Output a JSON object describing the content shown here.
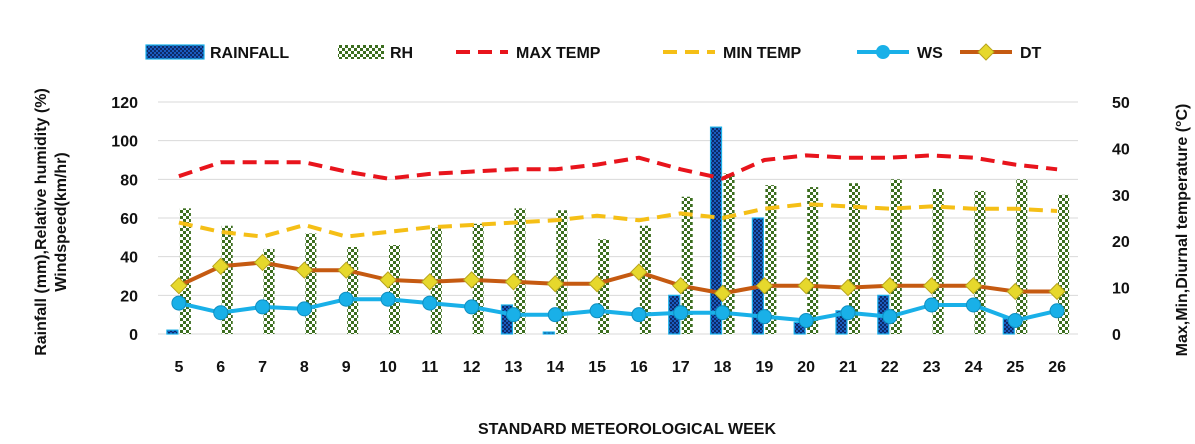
{
  "chart_data": {
    "type": "bar",
    "title": "",
    "xlabel": "STANDARD METEOROLOGICAL WEEK",
    "ylabel_left": [
      "Rainfall (mm),Relative humidity (%)",
      "Windspeed(km/hr)"
    ],
    "ylabel_right": "Max,Min,Diurnal temperature (°C)",
    "ylim_left": [
      0,
      120
    ],
    "ylim_right": [
      0,
      50
    ],
    "yticks_left": [
      0,
      20,
      40,
      60,
      80,
      100,
      120
    ],
    "yticks_right": [
      0,
      10,
      20,
      30,
      40,
      50
    ],
    "grid": true,
    "legend_position": "top",
    "categories": [
      "5",
      "6",
      "7",
      "8",
      "9",
      "10",
      "11",
      "12",
      "13",
      "14",
      "15",
      "16",
      "17",
      "18",
      "19",
      "20",
      "21",
      "22",
      "23",
      "24",
      "25",
      "26"
    ],
    "series": [
      {
        "name": "RAINFALL",
        "kind": "bar",
        "axis": "left",
        "color": "#1a5bbf",
        "values": [
          2,
          0,
          0,
          0,
          0,
          0,
          0,
          0,
          15,
          1,
          0,
          0,
          20,
          107,
          60,
          6,
          12,
          20,
          0,
          0,
          8,
          0
        ]
      },
      {
        "name": "RH",
        "kind": "bar",
        "axis": "left",
        "color": "#3c6e1f",
        "values": [
          65,
          56,
          44,
          52,
          45,
          46,
          55,
          57,
          65,
          64,
          49,
          56,
          71,
          83,
          77,
          76,
          78,
          80,
          75,
          74,
          80,
          72
        ]
      },
      {
        "name": "MAX TEMP",
        "kind": "line",
        "axis": "right",
        "style": "dashed",
        "color": "#e8141c",
        "values": [
          34,
          37,
          37,
          37,
          35,
          33.5,
          34.5,
          35,
          35.5,
          35.5,
          36.5,
          38,
          35.5,
          33.5,
          37.5,
          38.5,
          38,
          38,
          38.5,
          38,
          36.5,
          35.5
        ]
      },
      {
        "name": "MIN TEMP",
        "kind": "line",
        "axis": "right",
        "style": "dashed",
        "color": "#f5bf16",
        "values": [
          24,
          22,
          21,
          23.5,
          21,
          22,
          23,
          23.5,
          24,
          24.5,
          25.5,
          24.5,
          26,
          25,
          27,
          28,
          27.5,
          27,
          27.5,
          27,
          27,
          26.5
        ]
      },
      {
        "name": "WS",
        "kind": "line",
        "axis": "left",
        "style": "solid-marker",
        "color": "#19b0e8",
        "values": [
          16,
          11,
          14,
          13,
          18,
          18,
          16,
          14,
          10,
          10,
          12,
          10,
          11,
          11,
          9,
          7,
          11,
          9,
          15,
          15,
          7,
          12
        ]
      },
      {
        "name": "DT",
        "kind": "line",
        "axis": "left",
        "style": "solid-diamond",
        "color": "#c55a11",
        "marker_color": "#e6d82c",
        "values": [
          25,
          35,
          37,
          33,
          33,
          28,
          27,
          28,
          27,
          26,
          26,
          32,
          25,
          21,
          25,
          25,
          24,
          25,
          25,
          25,
          22,
          22
        ]
      }
    ]
  }
}
